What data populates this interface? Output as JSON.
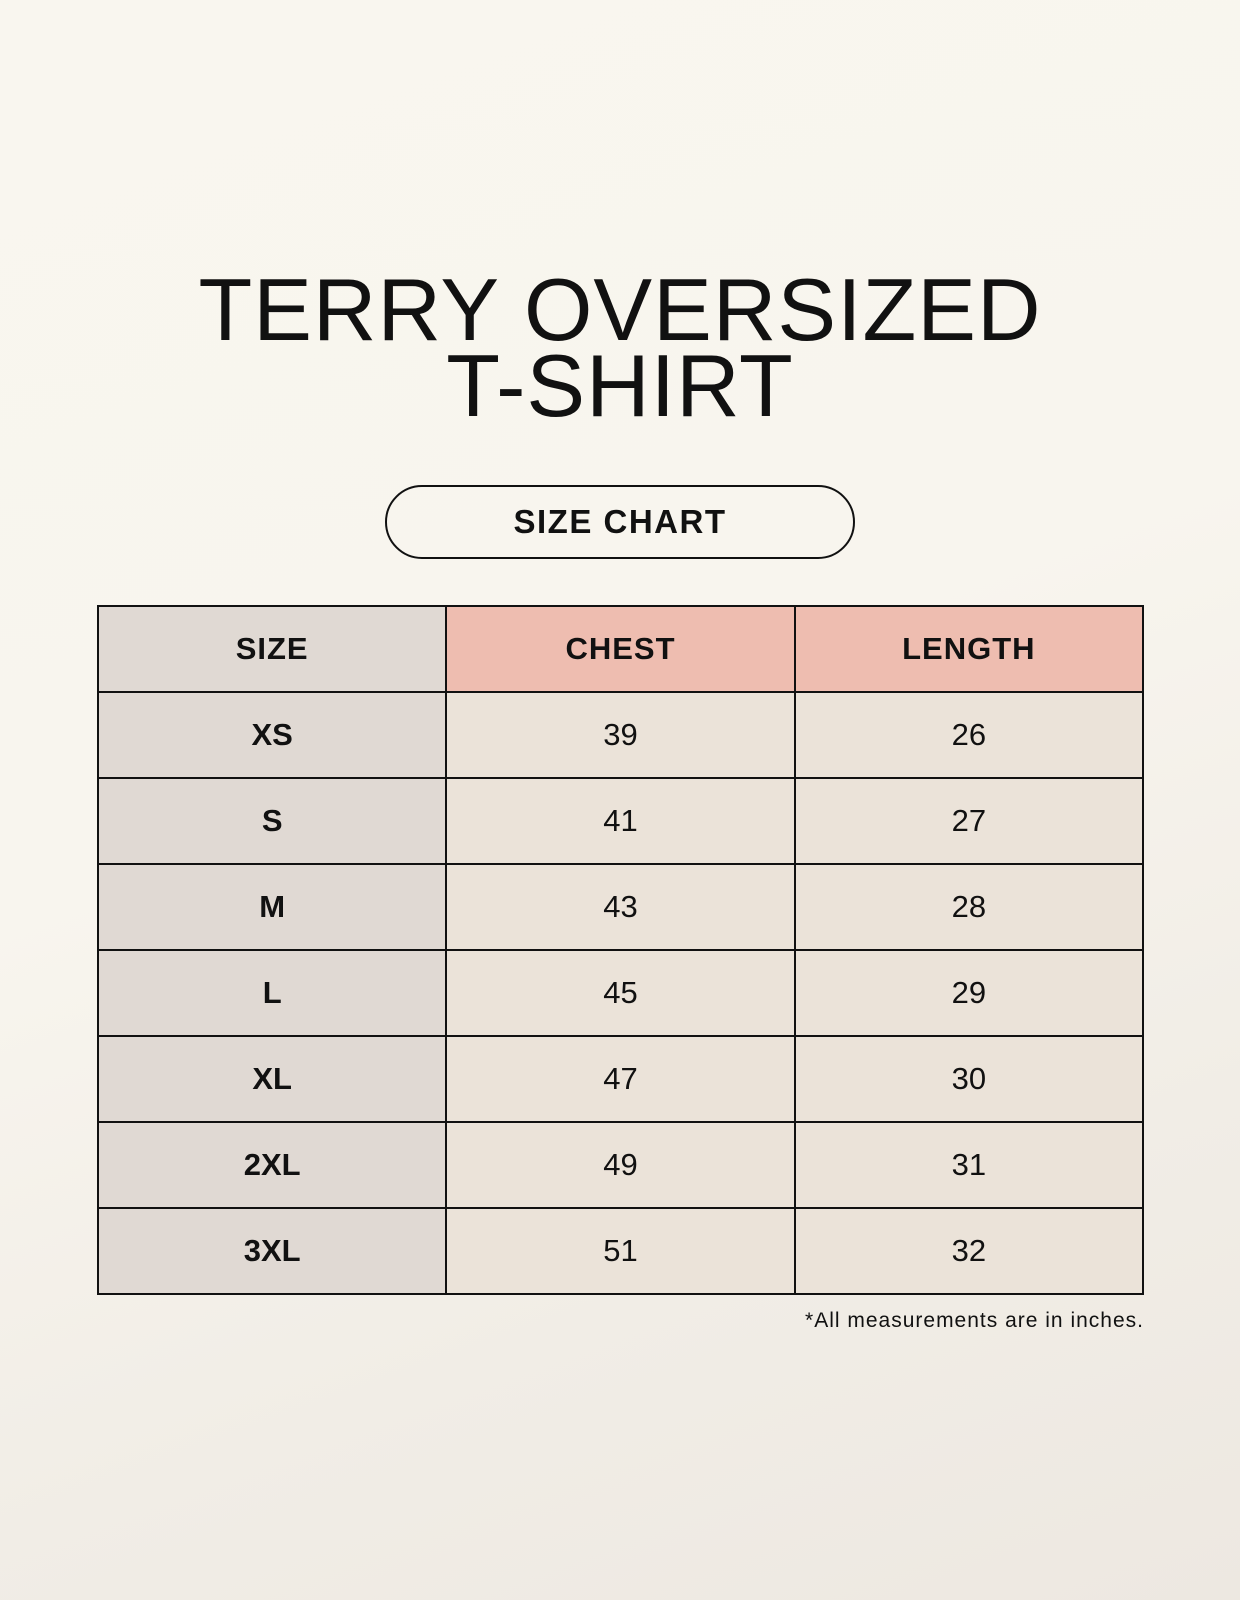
{
  "title": {
    "line1": "TERRY OVERSIZED",
    "line2": "T-SHIRT"
  },
  "badge": "SIZE CHART",
  "colors": {
    "size_column": "#e0d9d3",
    "measure_header": "#eebdb0",
    "cell": "#ebe3d9"
  },
  "table": {
    "headers": [
      "SIZE",
      "CHEST",
      "LENGTH"
    ],
    "rows": [
      [
        "XS",
        "39",
        "26"
      ],
      [
        "S",
        "41",
        "27"
      ],
      [
        "M",
        "43",
        "28"
      ],
      [
        "L",
        "45",
        "29"
      ],
      [
        "XL",
        "47",
        "30"
      ],
      [
        "2XL",
        "49",
        "31"
      ],
      [
        "3XL",
        "51",
        "32"
      ]
    ]
  },
  "footnote": "*All measurements are in inches."
}
